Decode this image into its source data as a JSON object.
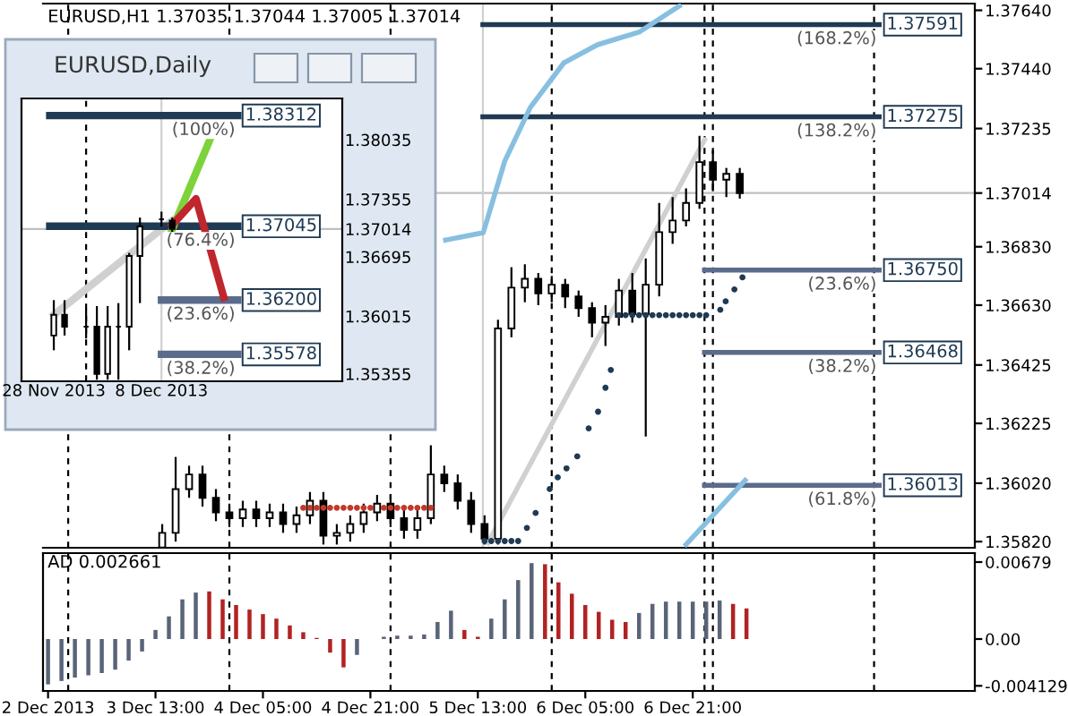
{
  "chart_data": [
    {
      "type": "candlestick",
      "title": "EURUSD,H1 1.37035 1.37044 1.37005 1.37014",
      "color": "#000000",
      "x": [
        "2013-12-03T14:00",
        "2013-12-03T16:00",
        "2013-12-03T18:00",
        "2013-12-03T20:00",
        "2013-12-03T22:00",
        "2013-12-04T00:00",
        "2013-12-04T02:00",
        "2013-12-04T04:00",
        "2013-12-04T06:00",
        "2013-12-04T08:00",
        "2013-12-04T10:00",
        "2013-12-04T12:00",
        "2013-12-04T14:00",
        "2013-12-04T16:00",
        "2013-12-04T18:00",
        "2013-12-04T20:00",
        "2013-12-04T22:00",
        "2013-12-05T00:00",
        "2013-12-05T02:00",
        "2013-12-05T04:00",
        "2013-12-05T06:00",
        "2013-12-05T08:00",
        "2013-12-05T10:00",
        "2013-12-05T12:00",
        "2013-12-05T14:00",
        "2013-12-05T16:00",
        "2013-12-05T18:00",
        "2013-12-05T20:00",
        "2013-12-05T22:00",
        "2013-12-06T00:00",
        "2013-12-06T02:00",
        "2013-12-06T04:00",
        "2013-12-06T06:00",
        "2013-12-06T08:00",
        "2013-12-06T10:00",
        "2013-12-06T12:00",
        "2013-12-06T14:00",
        "2013-12-06T16:00",
        "2013-12-06T18:00",
        "2013-12-06T20:00",
        "2013-12-06T22:00",
        "2013-12-07T00:00",
        "2013-12-07T02:00",
        "2013-12-07T04:00"
      ],
      "ohlc": [
        [
          1.358,
          1.3588,
          1.3578,
          1.3585
        ],
        [
          1.3585,
          1.3611,
          1.3582,
          1.36
        ],
        [
          1.36,
          1.3608,
          1.3597,
          1.3605
        ],
        [
          1.3605,
          1.3608,
          1.3594,
          1.3597
        ],
        [
          1.3597,
          1.36,
          1.3589,
          1.3592
        ],
        [
          1.3592,
          1.3595,
          1.3587,
          1.359
        ],
        [
          1.359,
          1.3596,
          1.3587,
          1.3593
        ],
        [
          1.3593,
          1.3596,
          1.3587,
          1.359
        ],
        [
          1.359,
          1.3595,
          1.3587,
          1.3592
        ],
        [
          1.3592,
          1.3595,
          1.3585,
          1.3588
        ],
        [
          1.3588,
          1.3594,
          1.3585,
          1.3591
        ],
        [
          1.3591,
          1.3599,
          1.3588,
          1.3596
        ],
        [
          1.3596,
          1.3599,
          1.3581,
          1.3584
        ],
        [
          1.3584,
          1.3588,
          1.3581,
          1.3585
        ],
        [
          1.3585,
          1.3591,
          1.3582,
          1.3588
        ],
        [
          1.3588,
          1.3595,
          1.3585,
          1.3592
        ],
        [
          1.3592,
          1.3598,
          1.3589,
          1.3595
        ],
        [
          1.3595,
          1.3598,
          1.3587,
          1.359
        ],
        [
          1.359,
          1.3593,
          1.3583,
          1.3586
        ],
        [
          1.3586,
          1.3593,
          1.3583,
          1.359
        ],
        [
          1.359,
          1.3615,
          1.3588,
          1.3605
        ],
        [
          1.3605,
          1.3608,
          1.3599,
          1.3602
        ],
        [
          1.3602,
          1.3605,
          1.3593,
          1.3596
        ],
        [
          1.3596,
          1.3599,
          1.3585,
          1.3588
        ],
        [
          1.3588,
          1.3591,
          1.3581,
          1.3583
        ],
        [
          1.3583,
          1.3658,
          1.3581,
          1.3655
        ],
        [
          1.3655,
          1.3676,
          1.3652,
          1.3669
        ],
        [
          1.3669,
          1.3677,
          1.3664,
          1.3672
        ],
        [
          1.3672,
          1.3674,
          1.3663,
          1.3667
        ],
        [
          1.3667,
          1.3673,
          1.3664,
          1.367
        ],
        [
          1.367,
          1.3672,
          1.3662,
          1.3666
        ],
        [
          1.3666,
          1.3668,
          1.3659,
          1.3662
        ],
        [
          1.3662,
          1.3664,
          1.3652,
          1.3657
        ],
        [
          1.3657,
          1.3663,
          1.3649,
          1.3659
        ],
        [
          1.3659,
          1.3672,
          1.3656,
          1.3668
        ],
        [
          1.3668,
          1.3674,
          1.3657,
          1.366
        ],
        [
          1.366,
          1.3679,
          1.3618,
          1.367
        ],
        [
          1.367,
          1.3698,
          1.3666,
          1.3688
        ],
        [
          1.3688,
          1.37,
          1.3684,
          1.3692
        ],
        [
          1.3692,
          1.3703,
          1.369,
          1.3698
        ],
        [
          1.3698,
          1.3721,
          1.3696,
          1.3712
        ],
        [
          1.3712,
          1.3716,
          1.3702,
          1.3706
        ],
        [
          1.3706,
          1.371,
          1.37,
          1.3708
        ],
        [
          1.3708,
          1.371,
          1.36995,
          1.37014
        ]
      ],
      "series": [
        {
          "type": "line",
          "name": "(168.2%)",
          "color": "#1f3a52",
          "x": [
            "2013-12-05T13:45",
            "2013-12-08T00:45"
          ],
          "values": [
            1.37591,
            1.37591
          ],
          "value_labels": [
            null,
            "1.37591"
          ]
        },
        {
          "type": "line",
          "name": "(138.2%)",
          "color": "#1f3a52",
          "x": [
            "2013-12-05T13:45",
            "2013-12-08T00:45"
          ],
          "values": [
            1.37275,
            1.37275
          ],
          "value_labels": [
            null,
            "1.37275"
          ]
        },
        {
          "type": "line",
          "name": "(23.6%)",
          "color": "#5b6b8c",
          "x": [
            "2013-12-06T22:45",
            "2013-12-08T00:45"
          ],
          "values": [
            1.3675,
            1.3675
          ],
          "value_labels": [
            null,
            "1.36750"
          ]
        },
        {
          "type": "line",
          "name": "(38.2%)",
          "color": "#5b6b8c",
          "x": [
            "2013-12-06T22:45",
            "2013-12-08T00:45"
          ],
          "values": [
            1.36468,
            1.36468
          ],
          "value_labels": [
            null,
            "1.36468"
          ]
        },
        {
          "type": "line",
          "name": "(61.8%)",
          "color": "#5b6b8c",
          "x": [
            "2013-12-06T22:45",
            "2013-12-08T00:45"
          ],
          "values": [
            1.36013,
            1.36013
          ],
          "value_labels": [
            null,
            "1.36013"
          ]
        },
        {
          "type": "line",
          "color": "#87bfe0",
          "x": [
            "2013-12-05T08:12",
            "2013-12-05T13:48",
            "2013-12-05T17:00",
            "2013-12-05T20:48",
            "2013-12-06T01:48",
            "2013-12-06T06:48",
            "2013-12-06T13:00",
            "2013-12-06T19:00"
          ],
          "values": [
            1.36853,
            1.36878,
            1.37123,
            1.37307,
            1.3746,
            1.37522,
            1.37565,
            1.37655
          ]
        },
        {
          "type": "line",
          "color": "#87bfe0",
          "x": [
            "2013-12-06T20:00",
            "2013-12-07T04:48"
          ],
          "values": [
            1.3581,
            1.3603
          ]
        },
        {
          "type": "line",
          "color": "#d0d0d0",
          "x": [
            "2013-12-05T14:30",
            "2013-12-06T22:45"
          ],
          "values": [
            1.35816,
            1.37196
          ]
        },
        {
          "type": "scatter",
          "marker": "circle",
          "color": "#1f3a52",
          "x": [
            "2013-12-05T14:00",
            "2013-12-05T15:00",
            "2013-12-05T16:00",
            "2013-12-05T17:00",
            "2013-12-05T18:00",
            "2013-12-05T19:00",
            "2013-12-05T20:18",
            "2013-12-05T21:36",
            "2013-12-05T23:42",
            "2013-12-06T00:54",
            "2013-12-06T02:12",
            "2013-12-06T03:48",
            "2013-12-06T05:30",
            "2013-12-06T06:54",
            "2013-12-06T08:00",
            "2013-12-06T08:48",
            "2013-12-06T10:00",
            "2013-12-06T11:00",
            "2013-12-06T12:00",
            "2013-12-06T13:00",
            "2013-12-06T14:00",
            "2013-12-06T15:00",
            "2013-12-06T16:00",
            "2013-12-06T17:00",
            "2013-12-06T18:00",
            "2013-12-06T19:00",
            "2013-12-06T20:00",
            "2013-12-06T21:00",
            "2013-12-06T22:00",
            "2013-12-06T23:00",
            "2013-12-07T01:06",
            "2013-12-07T01:54",
            "2013-12-07T03:12",
            "2013-12-07T04:24"
          ],
          "values": [
            1.35822,
            1.35822,
            1.35822,
            1.35822,
            1.35822,
            1.35822,
            1.35867,
            1.35918,
            1.36,
            1.3604,
            1.36071,
            1.36112,
            1.36208,
            1.36265,
            1.36347,
            1.36408,
            1.36596,
            1.36596,
            1.36596,
            1.36596,
            1.36596,
            1.36596,
            1.36596,
            1.36596,
            1.36596,
            1.36596,
            1.36596,
            1.36596,
            1.36596,
            1.36596,
            1.36614,
            1.36643,
            1.36684,
            1.36725
          ]
        },
        {
          "type": "scatter",
          "marker": "circle",
          "color": "#c0392b",
          "x": [
            "2013-12-04T11:00",
            "2013-12-04T12:00",
            "2013-12-04T13:00",
            "2013-12-04T14:00",
            "2013-12-04T15:00",
            "2013-12-04T16:00",
            "2013-12-04T17:00",
            "2013-12-04T18:00",
            "2013-12-04T19:00",
            "2013-12-04T20:00",
            "2013-12-04T21:00",
            "2013-12-04T23:00",
            "2013-12-05T00:00",
            "2013-12-05T01:00",
            "2013-12-05T02:00",
            "2013-12-05T03:00",
            "2013-12-05T04:00",
            "2013-12-05T05:00",
            "2013-12-05T06:00"
          ],
          "values": [
            1.35936,
            1.35936,
            1.35936,
            1.35936,
            1.35936,
            1.35936,
            1.35936,
            1.35936,
            1.35936,
            1.35936,
            1.35936,
            1.35936,
            1.35936,
            1.35936,
            1.35936,
            1.35936,
            1.35936,
            1.35936,
            1.35936
          ]
        }
      ],
      "xlim": [
        "2013-12-02T20:15",
        "2013-12-08T15:00"
      ],
      "ylim": [
        1.35799,
        1.37663
      ],
      "yticks": [
        {
          "value": 1.3764,
          "label": "1.37640"
        },
        {
          "value": 1.3744,
          "label": "1.37440"
        },
        {
          "value": 1.37235,
          "label": "1.37235"
        },
        {
          "value": 1.3683,
          "label": "1.36830"
        },
        {
          "value": 1.3663,
          "label": "1.36630"
        },
        {
          "value": 1.36425,
          "label": "1.36425"
        },
        {
          "value": 1.36225,
          "label": "1.36225"
        },
        {
          "value": 1.3602,
          "label": "1.36020"
        },
        {
          "value": 1.3582,
          "label": "1.35820"
        }
      ],
      "ref_lines": [
        {
          "axis": "y",
          "value": 1.37014,
          "label": "1.37014",
          "color": "#c0c0c0",
          "line_style": "solid"
        },
        {
          "axis": "x",
          "value": "2013-12-03T00:00",
          "color": "#000000",
          "line_style": "dashed"
        },
        {
          "axis": "x",
          "value": "2013-12-04T00:00",
          "color": "#000000",
          "line_style": "dashed"
        },
        {
          "axis": "x",
          "value": "2013-12-05T00:00",
          "color": "#000000",
          "line_style": "dashed"
        },
        {
          "axis": "x",
          "value": "2013-12-06T00:00",
          "color": "#000000",
          "line_style": "dashed"
        },
        {
          "axis": "x",
          "value": "2013-12-06T22:45",
          "color": "#000000",
          "line_style": "dashed"
        },
        {
          "axis": "x",
          "value": "2013-12-07T00:00",
          "color": "#000000",
          "line_style": "dashed"
        },
        {
          "axis": "x",
          "value": "2013-12-08T00:00",
          "color": "#000000",
          "line_style": "dashed"
        },
        {
          "axis": "x",
          "value": "2013-12-05T13:45",
          "color": "#d0d0d0",
          "line_style": "solid"
        }
      ],
      "tick_labels": "y"
    },
    {
      "type": "candlestick",
      "title": "EURUSD,Daily",
      "color": "#000000",
      "x": [
        "2013-11-28",
        "2013-11-29",
        "2013-12-01",
        "2013-12-02",
        "2013-12-03",
        "2013-12-04",
        "2013-12-05",
        "2013-12-06",
        "2013-12-08",
        "2013-12-09"
      ],
      "ohlc": [
        [
          1.35794,
          1.36199,
          1.35625,
          1.3603
        ],
        [
          1.3603,
          1.36199,
          1.35794,
          1.35895
        ],
        [
          1.35895,
          1.36098,
          1.3576,
          1.35895
        ],
        [
          1.35895,
          1.36131,
          1.35288,
          1.35355
        ],
        [
          1.35355,
          1.36131,
          1.35288,
          1.35895
        ],
        [
          1.35895,
          1.36165,
          1.35288,
          1.35895
        ],
        [
          1.35895,
          1.36739,
          1.35625,
          1.36705
        ],
        [
          1.36705,
          1.37144,
          1.36165,
          1.37043
        ],
        [
          1.37124,
          1.37212,
          1.37043,
          1.37124
        ],
        [
          1.3711,
          1.37144,
          1.36975,
          1.37014
        ]
      ],
      "series": [
        {
          "type": "line",
          "color": "#d0d0d0",
          "x": [
            "2013-11-28",
            "2013-12-09"
          ],
          "values": [
            1.3603,
            1.3711
          ]
        },
        {
          "type": "line",
          "name": "(100%)",
          "color": "#1f3a52",
          "x": [
            "2013-11-27T15:00",
            "2013-12-15T02:00"
          ],
          "values": [
            1.38312,
            1.38312
          ],
          "value_labels": [
            null,
            "1.38312"
          ]
        },
        {
          "type": "line",
          "name": "(76.4%)",
          "color": "#1f3a52",
          "x": [
            "2013-11-27T15:00",
            "2013-12-15T02:00"
          ],
          "values": [
            1.37045,
            1.37045
          ],
          "value_labels": [
            null,
            "1.37045"
          ]
        },
        {
          "type": "line",
          "name": "(23.6%)",
          "color": "#5b6b8c",
          "x": [
            "2013-12-08",
            "2013-12-15T02:00"
          ],
          "values": [
            1.362,
            1.362
          ],
          "value_labels": [
            null,
            "1.36200"
          ]
        },
        {
          "type": "line",
          "name": "(38.2%)",
          "color": "#5b6b8c",
          "x": [
            "2013-12-08",
            "2013-12-15T02:00"
          ],
          "values": [
            1.35578,
            1.35578
          ],
          "value_labels": [
            null,
            "1.35578"
          ]
        },
        {
          "type": "line",
          "color": "#7cd33a",
          "x": [
            "2013-12-09",
            "2013-12-12T14:00"
          ],
          "values": [
            1.3701,
            1.3806
          ]
        },
        {
          "type": "line",
          "color": "#c0262d",
          "x": [
            "2013-12-09",
            "2013-12-11T05:00",
            "2013-12-13T19:00"
          ],
          "values": [
            1.3706,
            1.3736,
            1.3623
          ]
        }
      ],
      "xlim": [
        "2013-11-25T00:00",
        "2013-12-24T19:00"
      ],
      "ylim": [
        1.3527,
        1.38508
      ],
      "xticks": [
        {
          "value": "2013-11-28",
          "label": "28 Nov 2013"
        },
        {
          "value": "2013-12-08",
          "label": "8 Dec 2013"
        }
      ],
      "yticks": [
        {
          "value": 1.38035,
          "label": "1.38035"
        },
        {
          "value": 1.37355,
          "label": "1.37355"
        },
        {
          "value": 1.36695,
          "label": "1.36695"
        },
        {
          "value": 1.36015,
          "label": "1.36015"
        },
        {
          "value": 1.35355,
          "label": "1.35355"
        }
      ],
      "ref_lines": [
        {
          "axis": "y",
          "value": 1.37014,
          "label": "1.37014",
          "color": "#c0c0c0",
          "line_style": "solid"
        },
        {
          "axis": "x",
          "value": "2013-12-01",
          "color": "#000000",
          "line_style": "dashed"
        },
        {
          "axis": "x",
          "value": "2013-12-08",
          "color": "#d0d0d0",
          "line_style": "solid"
        }
      ]
    },
    {
      "type": "bar",
      "title": "AD 0.002661",
      "x": [
        "2013-12-02T21:00",
        "2013-12-02T23:00",
        "2013-12-03T01:00",
        "2013-12-03T03:00",
        "2013-12-03T05:00",
        "2013-12-03T07:00",
        "2013-12-03T09:00",
        "2013-12-03T11:00",
        "2013-12-03T13:00",
        "2013-12-03T15:00",
        "2013-12-03T17:00",
        "2013-12-03T19:00",
        "2013-12-03T21:00",
        "2013-12-03T23:00",
        "2013-12-04T01:00",
        "2013-12-04T03:00",
        "2013-12-04T05:00",
        "2013-12-04T07:00",
        "2013-12-04T09:00",
        "2013-12-04T11:00",
        "2013-12-04T13:00",
        "2013-12-04T15:00",
        "2013-12-04T17:00",
        "2013-12-04T19:00",
        "2013-12-04T21:00",
        "2013-12-04T23:00",
        "2013-12-05T01:00",
        "2013-12-05T03:00",
        "2013-12-05T05:00",
        "2013-12-05T07:00",
        "2013-12-05T09:00",
        "2013-12-05T11:00",
        "2013-12-05T13:00",
        "2013-12-05T15:00",
        "2013-12-05T17:00",
        "2013-12-05T19:00",
        "2013-12-05T21:00",
        "2013-12-05T23:00",
        "2013-12-06T01:00",
        "2013-12-06T03:00",
        "2013-12-06T05:00",
        "2013-12-06T07:00",
        "2013-12-06T09:00",
        "2013-12-06T11:00",
        "2013-12-06T13:00",
        "2013-12-06T15:00",
        "2013-12-06T17:00",
        "2013-12-06T19:00",
        "2013-12-06T21:00",
        "2013-12-06T23:00",
        "2013-12-07T01:00",
        "2013-12-07T03:00",
        "2013-12-07T05:00"
      ],
      "values": [
        -0.004,
        -0.0037,
        -0.0034,
        -0.0032,
        -0.003,
        -0.0027,
        -0.0019,
        -0.0011,
        0.0008,
        0.002,
        0.0035,
        0.0041,
        0.0042,
        0.0035,
        0.003,
        0.0026,
        0.0022,
        0.0018,
        0.0012,
        0.0006,
        0.0001,
        -0.0012,
        -0.0025,
        -0.0014,
        0.0,
        0.0002,
        0.0003,
        0.0003,
        0.0004,
        0.0015,
        0.0025,
        0.0008,
        0.0002,
        0.0018,
        0.0035,
        0.0052,
        0.0067,
        0.0066,
        0.005,
        0.004,
        0.003,
        0.0024,
        0.0017,
        0.0015,
        0.0023,
        0.0031,
        0.0033,
        0.0033,
        0.0033,
        0.0033,
        0.0034,
        0.0031,
        0.0027
      ],
      "colors": [
        "#5a6478",
        "#5a6478",
        "#5a6478",
        "#5a6478",
        "#5a6478",
        "#5a6478",
        "#5a6478",
        "#5a6478",
        "#5a6478",
        "#5a6478",
        "#5a6478",
        "#5a6478",
        "#b22222",
        "#b22222",
        "#b22222",
        "#b22222",
        "#b22222",
        "#b22222",
        "#b22222",
        "#b22222",
        "#b22222",
        "#b22222",
        "#b22222",
        "#5a6478",
        "#5a6478",
        "#5a6478",
        "#5a6478",
        "#5a6478",
        "#5a6478",
        "#5a6478",
        "#5a6478",
        "#b22222",
        "#b22222",
        "#5a6478",
        "#5a6478",
        "#5a6478",
        "#5a6478",
        "#b22222",
        "#b22222",
        "#b22222",
        "#b22222",
        "#b22222",
        "#b22222",
        "#b22222",
        "#5a6478",
        "#5a6478",
        "#5a6478",
        "#5a6478",
        "#5a6478",
        "#5a6478",
        "#5a6478",
        "#b22222",
        "#b22222"
      ],
      "xlim": [
        "2013-12-02T20:15",
        "2013-12-08T15:00"
      ],
      "ylim": [
        -0.00458,
        0.00758
      ],
      "xticks": [
        {
          "value": "2013-12-02T21:00",
          "label": "2 Dec 2013"
        },
        {
          "value": "2013-12-03T13:00",
          "label": "3 Dec 13:00"
        },
        {
          "value": "2013-12-04T05:00",
          "label": "4 Dec 05:00"
        },
        {
          "value": "2013-12-04T21:00",
          "label": "4 Dec 21:00"
        },
        {
          "value": "2013-12-05T13:00",
          "label": "5 Dec 13:00"
        },
        {
          "value": "2013-12-06T05:00",
          "label": "6 Dec 05:00"
        },
        {
          "value": "2013-12-06T21:00",
          "label": "6 Dec 21:00"
        }
      ],
      "yticks": [
        {
          "value": 0.00679,
          "label": "0.00679"
        },
        {
          "value": 0,
          "label": "0.00"
        },
        {
          "value": -0.004129,
          "label": "-0.004129"
        }
      ],
      "ref_lines": [
        {
          "axis": "x",
          "value": "2013-12-03T00:00",
          "color": "#000000",
          "line_style": "dashed"
        },
        {
          "axis": "x",
          "value": "2013-12-04T00:00",
          "color": "#000000",
          "line_style": "dashed"
        },
        {
          "axis": "x",
          "value": "2013-12-05T00:00",
          "color": "#000000",
          "line_style": "dashed"
        },
        {
          "axis": "x",
          "value": "2013-12-06T00:00",
          "color": "#000000",
          "line_style": "dashed"
        },
        {
          "axis": "x",
          "value": "2013-12-06T22:45",
          "color": "#000000",
          "line_style": "dashed"
        },
        {
          "axis": "x",
          "value": "2013-12-07T00:00",
          "color": "#000000",
          "line_style": "dashed"
        },
        {
          "axis": "x",
          "value": "2013-12-08T00:00",
          "color": "#000000",
          "line_style": "dashed"
        }
      ]
    }
  ]
}
